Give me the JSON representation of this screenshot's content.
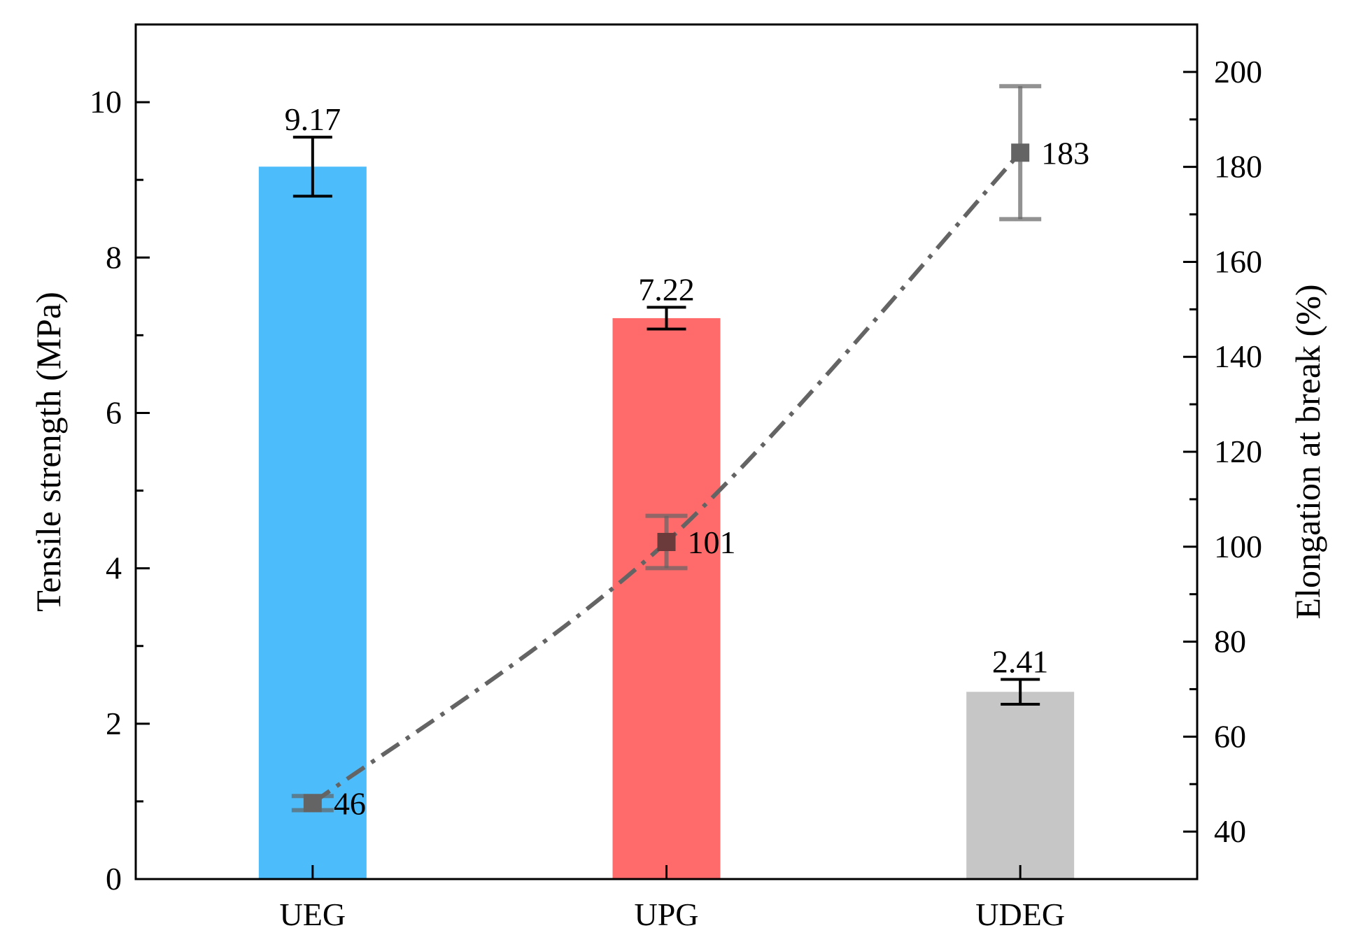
{
  "chart_data": {
    "type": "bar",
    "categories": [
      "UEG",
      "UPG",
      "UDEG"
    ],
    "left_axis": {
      "label": "Tensile strength (MPa)",
      "ylim": [
        0,
        11
      ],
      "ticks": [
        0,
        2,
        4,
        6,
        8,
        10
      ],
      "tick_labels": [
        "0",
        "2",
        "4",
        "6",
        "8",
        "10"
      ]
    },
    "right_axis": {
      "label": "Elongation at break (%)",
      "ylim": [
        30,
        210
      ],
      "ticks": [
        40,
        60,
        80,
        100,
        120,
        140,
        160,
        180,
        200
      ],
      "tick_labels": [
        "40",
        "60",
        "80",
        "100",
        "120",
        "140",
        "160",
        "180",
        "200"
      ]
    },
    "series": [
      {
        "kind": "bar",
        "axis": "left",
        "values": [
          9.17,
          7.22,
          2.41
        ],
        "error": [
          0.38,
          0.14,
          0.16
        ],
        "data_labels": [
          "9.17",
          "7.22",
          "2.41"
        ],
        "colors": [
          "#4cbcfa",
          "#ff6b6b",
          "#c6c6c6"
        ]
      },
      {
        "kind": "line",
        "axis": "right",
        "values": [
          46,
          101,
          183
        ],
        "error": [
          1.5,
          5.5,
          14
        ],
        "data_labels": [
          "46",
          "101",
          "183"
        ],
        "color": "#646464",
        "line_style": "dash-dot",
        "marker": "square"
      }
    ],
    "grid": false,
    "legend": "none"
  }
}
